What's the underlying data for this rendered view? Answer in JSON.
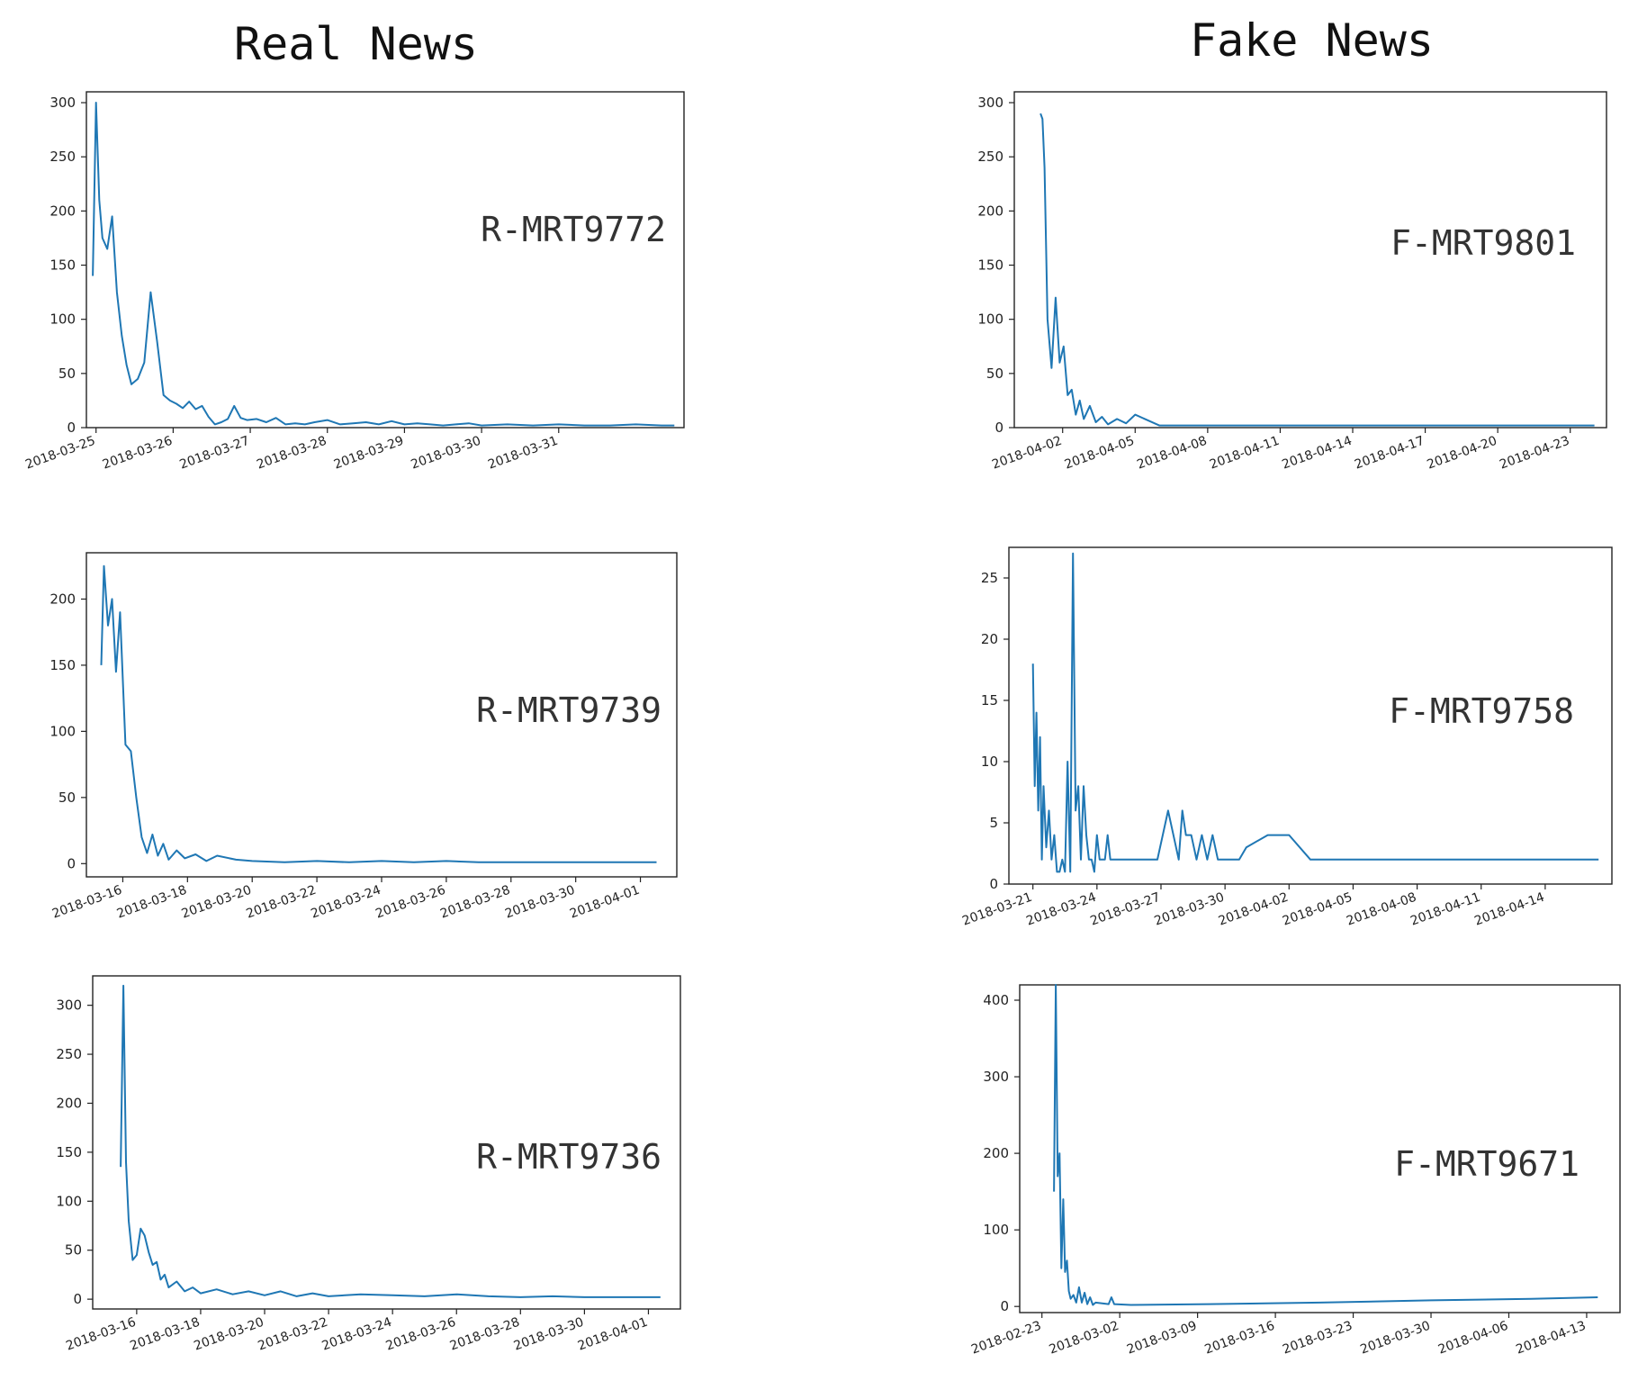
{
  "columns": {
    "left_title": "Real News",
    "right_title": "Fake News"
  },
  "chart_data": [
    {
      "type": "line",
      "label": "R-MRT9772",
      "color": "#1f77b4",
      "ylim": [
        0,
        310
      ],
      "yticks": [
        0,
        50,
        100,
        150,
        200,
        250,
        300
      ],
      "xlim": [
        "2018-03-24T21:00",
        "2018-04-01T15:00"
      ],
      "xticks": [
        "2018-03-25",
        "2018-03-26",
        "2018-03-27",
        "2018-03-28",
        "2018-03-29",
        "2018-03-30",
        "2018-03-31"
      ],
      "x": [
        "2018-03-24T23:00",
        "2018-03-25T00:00",
        "2018-03-25T01:00",
        "2018-03-25T02:00",
        "2018-03-25T03:30",
        "2018-03-25T05:00",
        "2018-03-25T06:30",
        "2018-03-25T08:00",
        "2018-03-25T09:30",
        "2018-03-25T11:00",
        "2018-03-25T13:00",
        "2018-03-25T15:00",
        "2018-03-25T17:00",
        "2018-03-25T19:00",
        "2018-03-25T21:00",
        "2018-03-25T23:00",
        "2018-03-26T01:00",
        "2018-03-26T03:00",
        "2018-03-26T05:00",
        "2018-03-26T07:00",
        "2018-03-26T09:00",
        "2018-03-26T11:00",
        "2018-03-26T13:00",
        "2018-03-26T15:00",
        "2018-03-26T17:00",
        "2018-03-26T19:00",
        "2018-03-26T21:00",
        "2018-03-26T23:00",
        "2018-03-27T02:00",
        "2018-03-27T05:00",
        "2018-03-27T08:00",
        "2018-03-27T11:00",
        "2018-03-27T14:00",
        "2018-03-27T17:00",
        "2018-03-27T20:00",
        "2018-03-28T00:00",
        "2018-03-28T04:00",
        "2018-03-28T08:00",
        "2018-03-28T12:00",
        "2018-03-28T16:00",
        "2018-03-28T20:00",
        "2018-03-29T00:00",
        "2018-03-29T04:00",
        "2018-03-29T08:00",
        "2018-03-29T12:00",
        "2018-03-29T16:00",
        "2018-03-29T20:00",
        "2018-03-30T00:00",
        "2018-03-30T08:00",
        "2018-03-30T16:00",
        "2018-03-31T00:00",
        "2018-03-31T08:00",
        "2018-03-31T16:00",
        "2018-04-01T00:00",
        "2018-04-01T08:00",
        "2018-04-01T12:00"
      ],
      "y": [
        140,
        300,
        210,
        175,
        165,
        195,
        125,
        85,
        58,
        40,
        45,
        60,
        125,
        80,
        30,
        25,
        22,
        18,
        24,
        17,
        20,
        10,
        3,
        5,
        8,
        20,
        9,
        7,
        8,
        5,
        9,
        3,
        4,
        3,
        5,
        7,
        3,
        4,
        5,
        3,
        6,
        3,
        4,
        3,
        2,
        3,
        4,
        2,
        3,
        2,
        3,
        2,
        2,
        3,
        2,
        2
      ]
    },
    {
      "type": "line",
      "label": "F-MRT9801",
      "color": "#1f77b4",
      "ylim": [
        0,
        310
      ],
      "yticks": [
        0,
        50,
        100,
        150,
        200,
        250,
        300
      ],
      "xlim": [
        "2018-03-31T00:00",
        "2018-04-24T12:00"
      ],
      "xticks": [
        "2018-04-02",
        "2018-04-05",
        "2018-04-08",
        "2018-04-11",
        "2018-04-14",
        "2018-04-17",
        "2018-04-20",
        "2018-04-23"
      ],
      "x": [
        "2018-04-01T02:00",
        "2018-04-01T04:00",
        "2018-04-01T06:00",
        "2018-04-01T09:00",
        "2018-04-01T13:00",
        "2018-04-01T17:00",
        "2018-04-01T21:00",
        "2018-04-02T01:00",
        "2018-04-02T05:00",
        "2018-04-02T09:00",
        "2018-04-02T13:00",
        "2018-04-02T17:00",
        "2018-04-02T21:00",
        "2018-04-03T03:00",
        "2018-04-03T09:00",
        "2018-04-03T15:00",
        "2018-04-03T21:00",
        "2018-04-04T06:00",
        "2018-04-04T15:00",
        "2018-04-05T00:00",
        "2018-04-06T00:00",
        "2018-04-24T00:00"
      ],
      "y": [
        290,
        285,
        240,
        100,
        55,
        120,
        60,
        75,
        30,
        35,
        12,
        25,
        8,
        20,
        5,
        10,
        3,
        8,
        4,
        12,
        2,
        2
      ]
    },
    {
      "type": "line",
      "label": "R-MRT9739",
      "color": "#1f77b4",
      "ylim": [
        -10,
        235
      ],
      "yticks": [
        0,
        50,
        100,
        150,
        200
      ],
      "xlim": [
        "2018-03-14T21:00",
        "2018-04-02T03:00"
      ],
      "xticks": [
        "2018-03-16",
        "2018-03-18",
        "2018-03-20",
        "2018-03-22",
        "2018-03-24",
        "2018-03-26",
        "2018-03-28",
        "2018-03-30",
        "2018-04-01"
      ],
      "x": [
        "2018-03-15T08:00",
        "2018-03-15T10:00",
        "2018-03-15T13:00",
        "2018-03-15T16:00",
        "2018-03-15T19:00",
        "2018-03-15T22:00",
        "2018-03-16T02:00",
        "2018-03-16T06:00",
        "2018-03-16T10:00",
        "2018-03-16T14:00",
        "2018-03-16T18:00",
        "2018-03-16T22:00",
        "2018-03-17T02:00",
        "2018-03-17T06:00",
        "2018-03-17T10:00",
        "2018-03-17T16:00",
        "2018-03-17T22:00",
        "2018-03-18T06:00",
        "2018-03-18T14:00",
        "2018-03-18T22:00",
        "2018-03-19T12:00",
        "2018-03-20T00:00",
        "2018-03-21T00:00",
        "2018-03-22T00:00",
        "2018-03-23T00:00",
        "2018-03-24T00:00",
        "2018-03-25T00:00",
        "2018-03-26T00:00",
        "2018-03-27T00:00",
        "2018-03-28T00:00",
        "2018-03-29T00:00",
        "2018-03-30T00:00",
        "2018-03-31T00:00",
        "2018-04-01T00:00",
        "2018-04-01T12:00"
      ],
      "y": [
        150,
        225,
        180,
        200,
        145,
        190,
        90,
        85,
        50,
        20,
        8,
        22,
        6,
        15,
        3,
        10,
        4,
        7,
        2,
        6,
        3,
        2,
        1,
        2,
        1,
        2,
        1,
        2,
        1,
        1,
        1,
        1,
        1,
        1,
        1
      ]
    },
    {
      "type": "line",
      "label": "F-MRT9758",
      "color": "#1f77b4",
      "ylim": [
        0,
        27.5
      ],
      "yticks": [
        0,
        5,
        10,
        15,
        20,
        25
      ],
      "xlim": [
        "2018-03-19T21:00",
        "2018-04-17T03:00"
      ],
      "xticks": [
        "2018-03-21",
        "2018-03-24",
        "2018-03-27",
        "2018-03-30",
        "2018-04-02",
        "2018-04-05",
        "2018-04-08",
        "2018-04-11",
        "2018-04-14"
      ],
      "x": [
        "2018-03-21T00:00",
        "2018-03-21T02:00",
        "2018-03-21T04:00",
        "2018-03-21T06:00",
        "2018-03-21T08:00",
        "2018-03-21T10:00",
        "2018-03-21T12:00",
        "2018-03-21T15:00",
        "2018-03-21T18:00",
        "2018-03-21T21:00",
        "2018-03-22T00:00",
        "2018-03-22T03:00",
        "2018-03-22T06:00",
        "2018-03-22T09:00",
        "2018-03-22T12:00",
        "2018-03-22T15:00",
        "2018-03-22T18:00",
        "2018-03-22T21:00",
        "2018-03-23T00:00",
        "2018-03-23T03:00",
        "2018-03-23T06:00",
        "2018-03-23T09:00",
        "2018-03-23T12:00",
        "2018-03-23T15:00",
        "2018-03-23T18:00",
        "2018-03-23T21:00",
        "2018-03-24T00:00",
        "2018-03-24T03:00",
        "2018-03-24T09:00",
        "2018-03-24T12:00",
        "2018-03-24T15:00",
        "2018-03-26T20:00",
        "2018-03-27T08:00",
        "2018-03-27T20:00",
        "2018-03-28T00:00",
        "2018-03-28T04:00",
        "2018-03-28T10:00",
        "2018-03-28T16:00",
        "2018-03-28T22:00",
        "2018-03-29T04:00",
        "2018-03-29T10:00",
        "2018-03-29T16:00",
        "2018-03-29T22:00",
        "2018-03-30T04:00",
        "2018-03-30T10:00",
        "2018-03-30T16:00",
        "2018-03-31T00:00",
        "2018-04-01T00:00",
        "2018-04-02T00:00",
        "2018-04-03T00:00",
        "2018-04-16T12:00"
      ],
      "y": [
        18,
        8,
        14,
        6,
        12,
        2,
        8,
        3,
        6,
        2,
        4,
        1,
        1,
        2,
        1,
        10,
        1,
        27,
        6,
        8,
        2,
        8,
        4,
        2,
        2,
        1,
        4,
        2,
        2,
        4,
        2,
        2,
        6,
        2,
        6,
        4,
        4,
        2,
        4,
        2,
        4,
        2,
        2,
        2,
        2,
        2,
        3,
        4,
        4,
        2,
        2
      ]
    },
    {
      "type": "line",
      "label": "R-MRT9736",
      "color": "#1f77b4",
      "ylim": [
        -10,
        330
      ],
      "yticks": [
        0,
        50,
        100,
        150,
        200,
        250,
        300
      ],
      "xlim": [
        "2018-03-14T15:00",
        "2018-04-02T00:00"
      ],
      "xticks": [
        "2018-03-16",
        "2018-03-18",
        "2018-03-20",
        "2018-03-22",
        "2018-03-24",
        "2018-03-26",
        "2018-03-28",
        "2018-03-30",
        "2018-04-01"
      ],
      "x": [
        "2018-03-15T12:00",
        "2018-03-15T14:00",
        "2018-03-15T16:00",
        "2018-03-15T18:00",
        "2018-03-15T21:00",
        "2018-03-16T00:00",
        "2018-03-16T03:00",
        "2018-03-16T06:00",
        "2018-03-16T09:00",
        "2018-03-16T12:00",
        "2018-03-16T15:00",
        "2018-03-16T18:00",
        "2018-03-16T21:00",
        "2018-03-17T00:00",
        "2018-03-17T06:00",
        "2018-03-17T12:00",
        "2018-03-17T18:00",
        "2018-03-18T00:00",
        "2018-03-18T12:00",
        "2018-03-19T00:00",
        "2018-03-19T12:00",
        "2018-03-20T00:00",
        "2018-03-20T12:00",
        "2018-03-21T00:00",
        "2018-03-21T12:00",
        "2018-03-22T00:00",
        "2018-03-23T00:00",
        "2018-03-24T00:00",
        "2018-03-25T00:00",
        "2018-03-26T00:00",
        "2018-03-27T00:00",
        "2018-03-28T00:00",
        "2018-03-29T00:00",
        "2018-03-30T00:00",
        "2018-03-31T00:00",
        "2018-04-01T00:00",
        "2018-04-01T09:00"
      ],
      "y": [
        135,
        320,
        140,
        80,
        40,
        45,
        72,
        65,
        48,
        35,
        38,
        20,
        25,
        12,
        18,
        8,
        12,
        6,
        10,
        5,
        8,
        4,
        8,
        3,
        6,
        3,
        5,
        4,
        3,
        5,
        3,
        2,
        3,
        2,
        2,
        2,
        2
      ]
    },
    {
      "type": "line",
      "label": "F-MRT9671",
      "color": "#1f77b4",
      "ylim": [
        -8,
        420
      ],
      "yticks": [
        0,
        100,
        200,
        300,
        400
      ],
      "xlim": [
        "2018-02-21T00:00",
        "2018-04-16T00:00"
      ],
      "xticks": [
        "2018-02-23",
        "2018-03-02",
        "2018-03-09",
        "2018-03-16",
        "2018-03-23",
        "2018-03-30",
        "2018-04-06",
        "2018-04-13"
      ],
      "x": [
        "2018-02-24T02:00",
        "2018-02-24T06:00",
        "2018-02-24T10:00",
        "2018-02-24T14:00",
        "2018-02-24T18:00",
        "2018-02-24T22:00",
        "2018-02-25T02:00",
        "2018-02-25T06:00",
        "2018-02-25T10:00",
        "2018-02-25T14:00",
        "2018-02-25T20:00",
        "2018-02-26T02:00",
        "2018-02-26T08:00",
        "2018-02-26T14:00",
        "2018-02-26T20:00",
        "2018-02-27T02:00",
        "2018-02-27T08:00",
        "2018-02-27T14:00",
        "2018-02-27T20:00",
        "2018-03-01T00:00",
        "2018-03-01T06:00",
        "2018-03-01T12:00",
        "2018-03-03T00:00",
        "2018-03-10T00:00",
        "2018-03-20T00:00",
        "2018-03-30T00:00",
        "2018-04-08T00:00",
        "2018-04-14T00:00"
      ],
      "y": [
        150,
        420,
        170,
        200,
        50,
        140,
        45,
        60,
        20,
        10,
        15,
        5,
        25,
        5,
        18,
        3,
        12,
        2,
        5,
        3,
        12,
        3,
        2,
        3,
        5,
        8,
        10,
        12
      ]
    }
  ]
}
